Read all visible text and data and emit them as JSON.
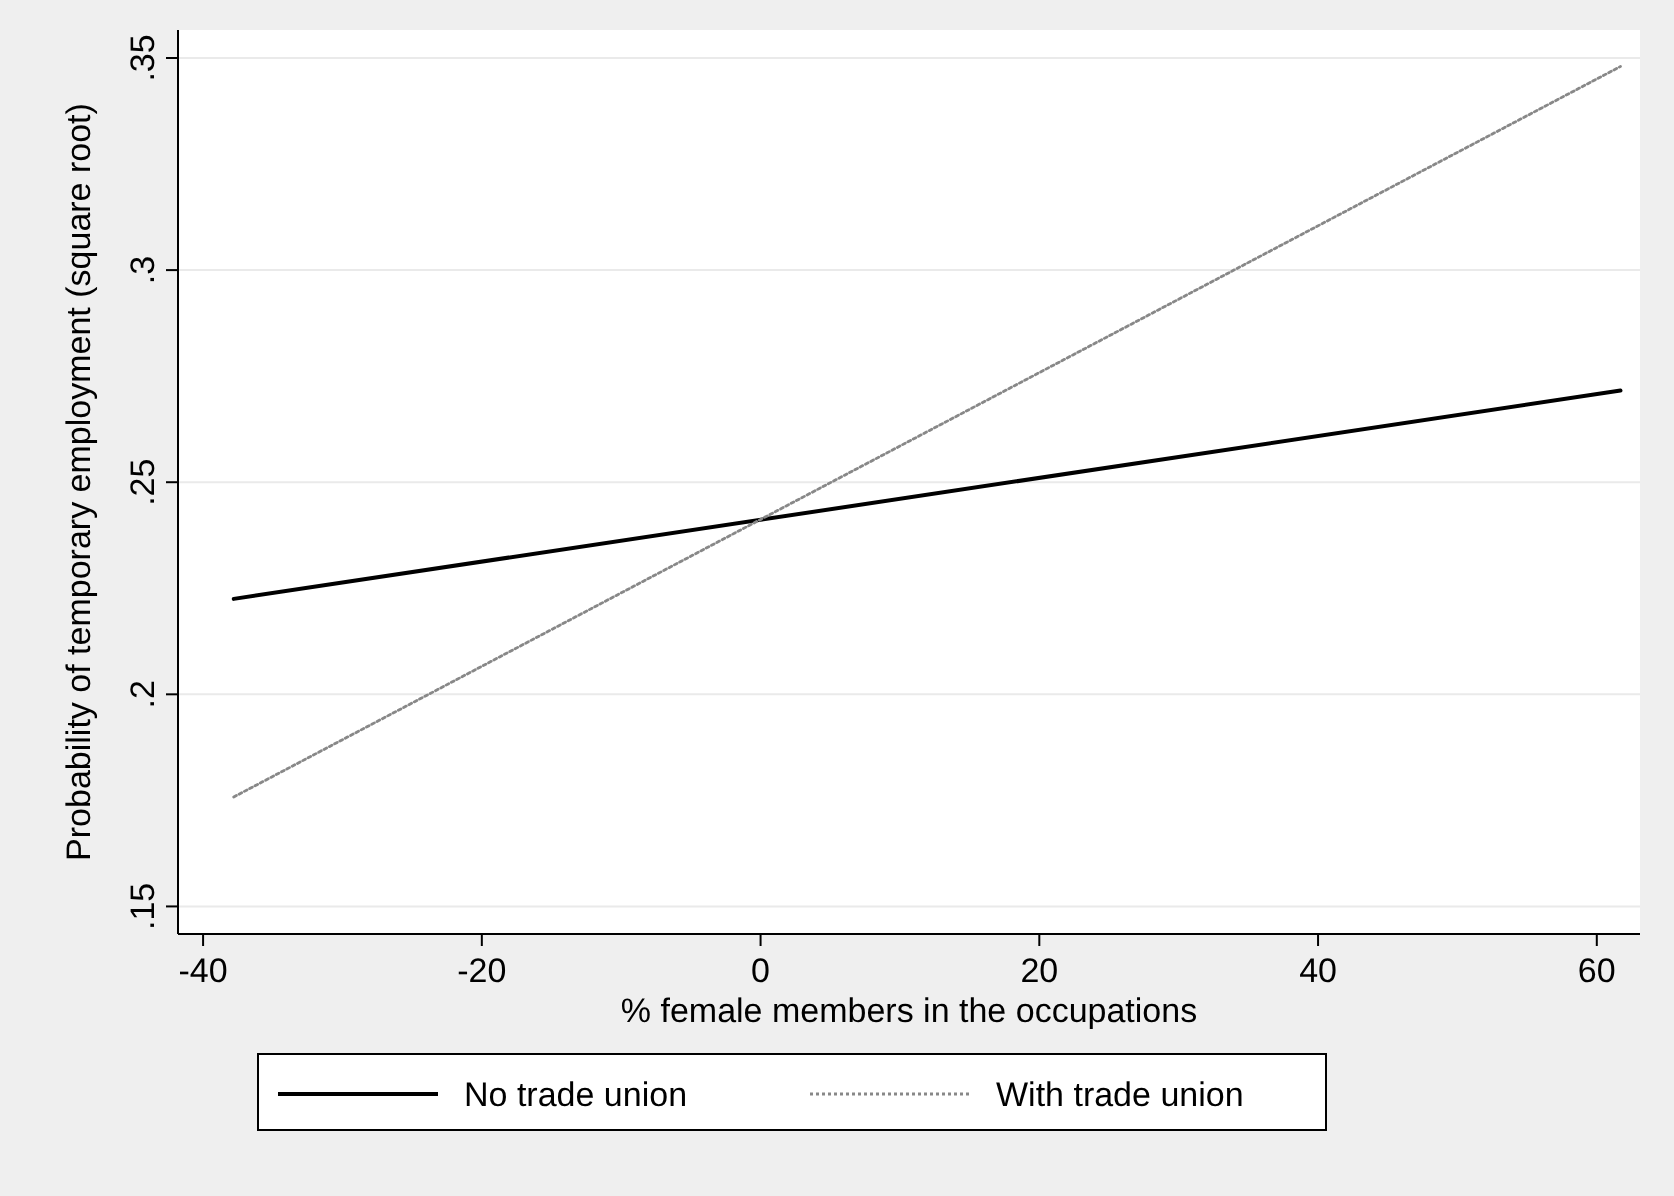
{
  "chart_data": {
    "type": "line",
    "xlabel": "% female members in the occupations",
    "ylabel": "Probability of temporary employment (square root)",
    "xlim": [
      -41.8,
      63.1
    ],
    "ylim": [
      0.1435,
      0.3566
    ],
    "xticks": [
      -40,
      -20,
      0,
      20,
      40,
      60
    ],
    "yticks": [
      {
        "value": 0.15,
        "label": ".15"
      },
      {
        "value": 0.2,
        "label": ".2"
      },
      {
        "value": 0.25,
        "label": ".25"
      },
      {
        "value": 0.3,
        "label": ".3"
      },
      {
        "value": 0.35,
        "label": ".35"
      }
    ],
    "x": [
      -37.8,
      61.7
    ],
    "grid": "y",
    "legend": "bottom",
    "marker": "none",
    "series": [
      {
        "name": "No trade union",
        "color": "#000000",
        "line_style": "solid",
        "values": [
          0.2225,
          0.2716
        ]
      },
      {
        "name": "With trade union",
        "color": "#888888",
        "line_style": "dotted",
        "values": [
          0.1758,
          0.348
        ]
      }
    ]
  }
}
